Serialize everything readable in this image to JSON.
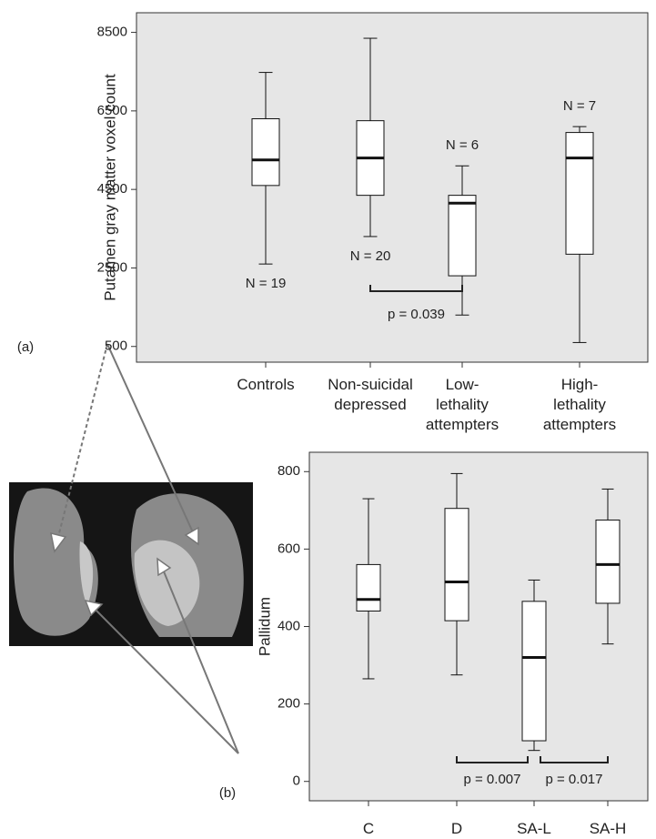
{
  "chart_data": [
    {
      "type": "box",
      "panel_label": "(a)",
      "y_label": "Putamen gray matter voxel count",
      "categories": [
        [
          "Controls"
        ],
        [
          "Non-suicidal",
          "depressed"
        ],
        [
          "Low-",
          "lethality",
          "attempters"
        ],
        [
          "High-",
          "lethality",
          "attempters"
        ]
      ],
      "boxes": [
        {
          "min": 2600,
          "q1": 4600,
          "median": 5250,
          "q3": 6300,
          "max": 7480
        },
        {
          "min": 3300,
          "q1": 4350,
          "median": 5300,
          "q3": 6250,
          "max": 8350
        },
        {
          "min": 1300,
          "q1": 2300,
          "median": 4150,
          "q3": 4350,
          "max": 5100
        },
        {
          "min": 600,
          "q1": 2850,
          "median": 5300,
          "q3": 5950,
          "max": 6100
        }
      ],
      "n_labels": [
        "N = 19",
        "N = 20",
        "N = 6",
        "N = 7"
      ],
      "comparisons": [
        "p = 0.039"
      ],
      "ylim": [
        100,
        9000
      ],
      "yticks": [
        500,
        2500,
        4500,
        6500,
        8500
      ],
      "background": "#e6e6e6"
    },
    {
      "type": "box",
      "panel_label": "(b)",
      "y_label": "Pallidum",
      "categories": [
        [
          "C"
        ],
        [
          "D"
        ],
        [
          "SA-L"
        ],
        [
          "SA-H"
        ]
      ],
      "boxes": [
        {
          "min": 265,
          "q1": 440,
          "median": 470,
          "q3": 560,
          "max": 730
        },
        {
          "min": 275,
          "q1": 415,
          "median": 515,
          "q3": 705,
          "max": 795
        },
        {
          "min": 80,
          "q1": 105,
          "median": 320,
          "q3": 465,
          "max": 520
        },
        {
          "min": 355,
          "q1": 460,
          "median": 560,
          "q3": 675,
          "max": 755
        }
      ],
      "comparisons": [
        "p = 0.007",
        "p = 0.017"
      ],
      "ylim": [
        -50,
        850
      ],
      "yticks": [
        0,
        200,
        400,
        600,
        800
      ],
      "background": "#e6e6e6"
    }
  ]
}
